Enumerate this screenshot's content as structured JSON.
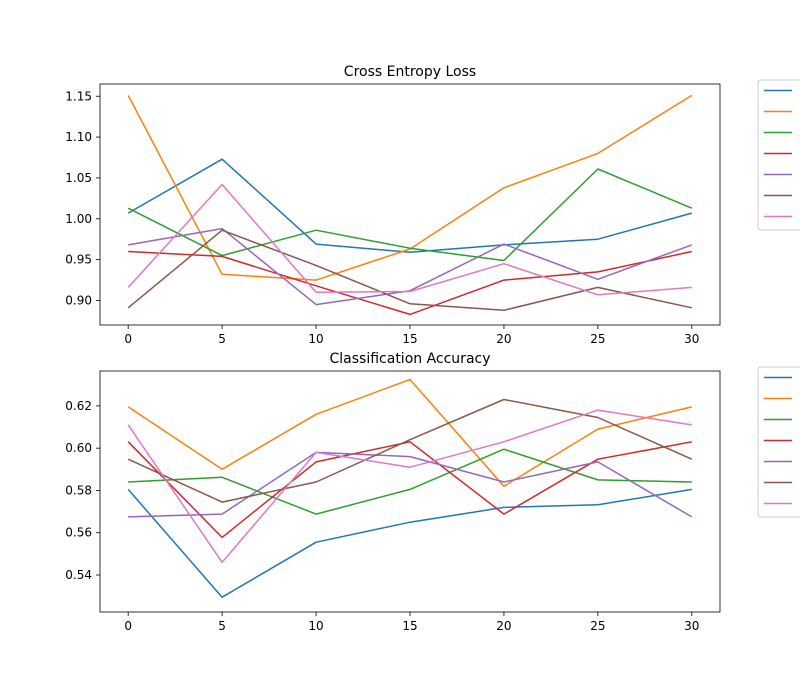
{
  "chart_data": [
    {
      "type": "line",
      "title": "Cross Entropy Loss",
      "xlabel": "",
      "ylabel": "",
      "x": [
        0,
        5,
        10,
        15,
        20,
        25,
        30
      ],
      "xlim": [
        -1.5,
        31.5
      ],
      "ylim": [
        0.87,
        1.165
      ],
      "xticks": [
        0,
        5,
        10,
        15,
        20,
        25,
        30
      ],
      "yticks": [
        0.9,
        0.95,
        1.0,
        1.05,
        1.1,
        1.15
      ],
      "ytick_labels": [
        "0.90",
        "0.95",
        "1.00",
        "1.05",
        "1.10",
        "1.15"
      ],
      "grid": false,
      "legend_placement": "outside-right",
      "series": [
        {
          "color": "#1f77b4",
          "values": [
            1.007,
            1.073,
            0.969,
            0.959,
            0.968,
            0.975,
            1.007
          ]
        },
        {
          "color": "#ff7f0e",
          "values": [
            1.151,
            0.932,
            0.925,
            0.963,
            1.038,
            1.08,
            1.151
          ]
        },
        {
          "color": "#2ca02c",
          "values": [
            1.013,
            0.955,
            0.986,
            0.964,
            0.949,
            1.061,
            1.013
          ]
        },
        {
          "color": "#d62728",
          "values": [
            0.96,
            0.954,
            0.918,
            0.883,
            0.925,
            0.935,
            0.96
          ]
        },
        {
          "color": "#9467bd",
          "values": [
            0.968,
            0.988,
            0.895,
            0.912,
            0.969,
            0.926,
            0.968
          ]
        },
        {
          "color": "#8c564b",
          "values": [
            0.891,
            0.986,
            0.943,
            0.896,
            0.888,
            0.916,
            0.891
          ]
        },
        {
          "color": "#e377c2",
          "values": [
            0.916,
            1.042,
            0.91,
            0.911,
            0.945,
            0.907,
            0.916
          ]
        }
      ]
    },
    {
      "type": "line",
      "title": "Classification Accuracy",
      "xlabel": "",
      "ylabel": "",
      "x": [
        0,
        5,
        10,
        15,
        20,
        25,
        30
      ],
      "xlim": [
        -1.5,
        31.5
      ],
      "ylim": [
        0.5225,
        0.6365
      ],
      "xticks": [
        0,
        5,
        10,
        15,
        20,
        25,
        30
      ],
      "yticks": [
        0.54,
        0.56,
        0.58,
        0.6,
        0.62
      ],
      "ytick_labels": [
        "0.54",
        "0.56",
        "0.58",
        "0.60",
        "0.62"
      ],
      "grid": false,
      "legend_placement": "outside-right",
      "series": [
        {
          "color": "#1f77b4",
          "values": [
            0.5805,
            0.5295,
            0.5555,
            0.565,
            0.572,
            0.5732,
            0.5805
          ]
        },
        {
          "color": "#ff7f0e",
          "values": [
            0.6195,
            0.59,
            0.616,
            0.6325,
            0.582,
            0.609,
            0.6195
          ]
        },
        {
          "color": "#2ca02c",
          "values": [
            0.584,
            0.5862,
            0.5688,
            0.5805,
            0.5995,
            0.585,
            0.584
          ]
        },
        {
          "color": "#d62728",
          "values": [
            0.603,
            0.5578,
            0.5935,
            0.603,
            0.5688,
            0.5948,
            0.603
          ]
        },
        {
          "color": "#9467bd",
          "values": [
            0.5675,
            0.5688,
            0.598,
            0.596,
            0.584,
            0.5935,
            0.5675
          ]
        },
        {
          "color": "#8c564b",
          "values": [
            0.5948,
            0.5745,
            0.584,
            0.604,
            0.623,
            0.6145,
            0.5948
          ]
        },
        {
          "color": "#e377c2",
          "values": [
            0.611,
            0.546,
            0.598,
            0.591,
            0.603,
            0.618,
            0.611
          ]
        }
      ]
    }
  ]
}
